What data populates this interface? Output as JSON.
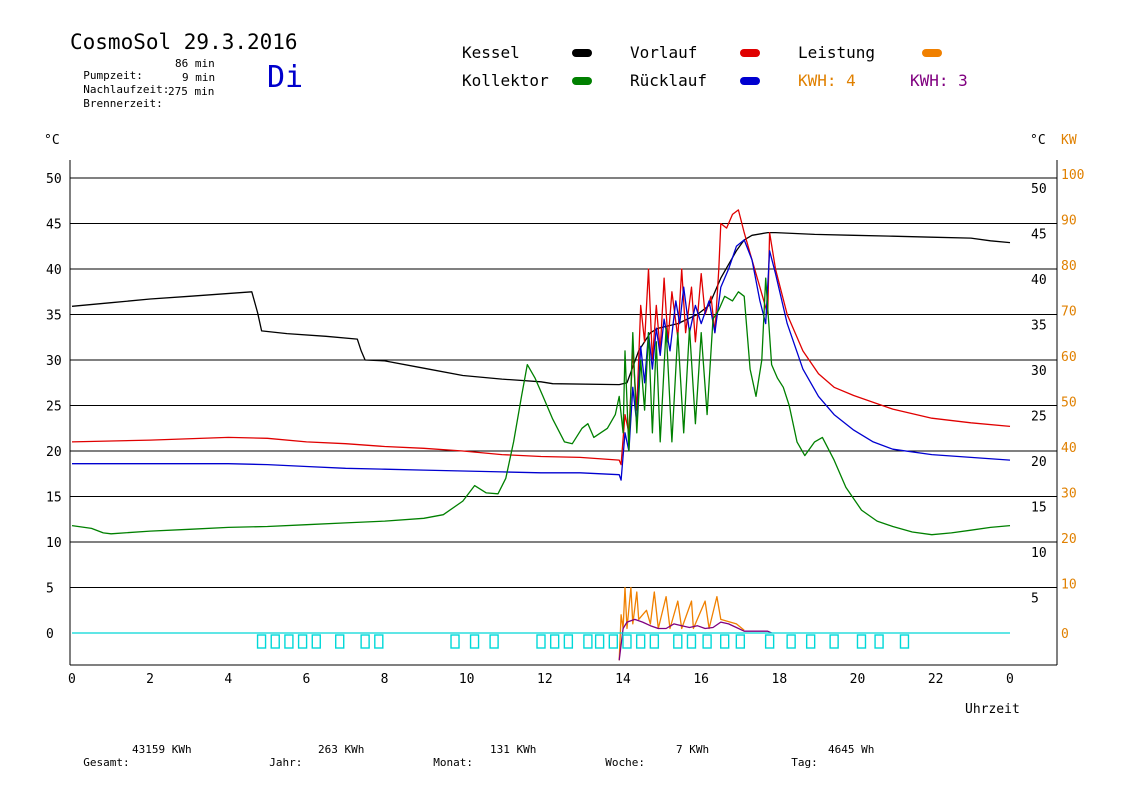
{
  "header": {
    "title": "CosmoSol 29.3.2016",
    "stats": [
      {
        "label": "Pumpzeit:",
        "value": "86 min"
      },
      {
        "label": "Nachlaufzeit:",
        "value": "9 min"
      },
      {
        "label": "Brennerzeit:",
        "value": "275 min"
      }
    ],
    "day": "Di"
  },
  "legend": {
    "items": [
      {
        "label": "Kessel",
        "color": "#000000"
      },
      {
        "label": "Vorlauf",
        "color": "#e00000"
      },
      {
        "label": "Leistung",
        "color": "#f08000"
      },
      {
        "label": "Kollektor",
        "color": "#008000"
      },
      {
        "label": "Rücklauf",
        "color": "#0000d0"
      }
    ],
    "kwh": [
      {
        "label": "KWH: 4",
        "color": "#e08000"
      },
      {
        "label": "KWH: 3",
        "color": "#800080"
      }
    ]
  },
  "axes": {
    "left_unit": "°C",
    "right_unit_c": "°C",
    "right_unit_kw": "KW",
    "x_label": "Uhrzeit"
  },
  "footer": [
    {
      "label": "Gesamt:",
      "value": "43159 KWh"
    },
    {
      "label": "Jahr:",
      "value": "263 KWh"
    },
    {
      "label": "Monat:",
      "value": "131 KWh"
    },
    {
      "label": "Woche:",
      "value": "7 KWh"
    },
    {
      "label": "Tag:",
      "value": "4645 Wh"
    }
  ],
  "chart_data": {
    "type": "line",
    "xlabel": "Uhrzeit",
    "ylabel": "°C",
    "x_ticks": [
      "0",
      "2",
      "4",
      "6",
      "8",
      "10",
      "12",
      "14",
      "16",
      "18",
      "20",
      "22",
      "0"
    ],
    "xlim": [
      0,
      24
    ],
    "y_left_ticks": [
      "0",
      "5",
      "10",
      "15",
      "20",
      "25",
      "30",
      "35",
      "40",
      "45",
      "50"
    ],
    "y_right_c_ticks": [
      "5",
      "10",
      "15",
      "20",
      "25",
      "30",
      "35",
      "40",
      "45",
      "50"
    ],
    "y_right_kw_ticks": [
      "0",
      "10",
      "20",
      "30",
      "40",
      "50",
      "60",
      "70",
      "80",
      "90",
      "100"
    ],
    "ylim": [
      -3.5,
      50
    ],
    "grid": "horizontal",
    "series": [
      {
        "name": "Kessel",
        "color": "#000000",
        "points": [
          [
            0,
            35.9
          ],
          [
            1,
            36.3
          ],
          [
            2,
            36.7
          ],
          [
            3,
            37.0
          ],
          [
            4.6,
            37.5
          ],
          [
            4.75,
            35.2
          ],
          [
            4.85,
            33.2
          ],
          [
            5.5,
            32.9
          ],
          [
            6.5,
            32.6
          ],
          [
            7.3,
            32.3
          ],
          [
            7.4,
            31.0
          ],
          [
            7.5,
            30.0
          ],
          [
            8,
            29.9
          ],
          [
            9,
            29.1
          ],
          [
            10,
            28.3
          ],
          [
            11,
            27.9
          ],
          [
            12,
            27.6
          ],
          [
            12.3,
            27.4
          ],
          [
            14,
            27.3
          ],
          [
            14.2,
            27.5
          ],
          [
            14.5,
            31.0
          ],
          [
            14.8,
            33.0
          ],
          [
            15,
            33.5
          ],
          [
            15.5,
            34.0
          ],
          [
            16,
            35.0
          ],
          [
            16.3,
            36.0
          ],
          [
            16.6,
            39.0
          ],
          [
            17,
            42.0
          ],
          [
            17.2,
            43.2
          ],
          [
            17.4,
            43.7
          ],
          [
            17.8,
            44.0
          ],
          [
            18,
            44.0
          ],
          [
            19,
            43.8
          ],
          [
            20,
            43.7
          ],
          [
            21,
            43.6
          ],
          [
            22,
            43.5
          ],
          [
            23,
            43.4
          ],
          [
            23.5,
            43.1
          ],
          [
            24,
            42.9
          ]
        ]
      },
      {
        "name": "Vorlauf",
        "color": "#e00000",
        "points": [
          [
            0,
            21.0
          ],
          [
            2,
            21.2
          ],
          [
            4,
            21.5
          ],
          [
            5,
            21.4
          ],
          [
            6,
            21.0
          ],
          [
            7,
            20.8
          ],
          [
            8,
            20.5
          ],
          [
            9,
            20.3
          ],
          [
            10,
            20.0
          ],
          [
            11,
            19.6
          ],
          [
            12,
            19.4
          ],
          [
            13,
            19.3
          ],
          [
            14,
            19.0
          ],
          [
            14.05,
            18.5
          ],
          [
            14.15,
            24.0
          ],
          [
            14.25,
            22.0
          ],
          [
            14.35,
            31.0
          ],
          [
            14.45,
            24.5
          ],
          [
            14.55,
            36.0
          ],
          [
            14.65,
            32.0
          ],
          [
            14.75,
            40.0
          ],
          [
            14.85,
            30.0
          ],
          [
            14.95,
            36.0
          ],
          [
            15.05,
            31.0
          ],
          [
            15.15,
            39.0
          ],
          [
            15.25,
            32.0
          ],
          [
            15.35,
            37.5
          ],
          [
            15.5,
            32.5
          ],
          [
            15.6,
            40.0
          ],
          [
            15.7,
            33.0
          ],
          [
            15.85,
            38.0
          ],
          [
            15.95,
            32.0
          ],
          [
            16.1,
            39.5
          ],
          [
            16.2,
            35.0
          ],
          [
            16.35,
            37.0
          ],
          [
            16.45,
            33.0
          ],
          [
            16.55,
            40.0
          ],
          [
            16.6,
            45.0
          ],
          [
            16.75,
            44.5
          ],
          [
            16.9,
            46.0
          ],
          [
            17.05,
            46.5
          ],
          [
            17.2,
            44.0
          ],
          [
            17.4,
            41.0
          ],
          [
            17.6,
            38.0
          ],
          [
            17.8,
            35.0
          ],
          [
            17.85,
            44.0
          ],
          [
            18,
            40.0
          ],
          [
            18.3,
            35.0
          ],
          [
            18.7,
            31.0
          ],
          [
            19.1,
            28.5
          ],
          [
            19.5,
            27.0
          ],
          [
            20,
            26.1
          ],
          [
            21,
            24.6
          ],
          [
            22,
            23.6
          ],
          [
            23,
            23.1
          ],
          [
            24,
            22.7
          ]
        ]
      },
      {
        "name": "Rücklauf",
        "color": "#0000d0",
        "points": [
          [
            0,
            18.6
          ],
          [
            2,
            18.6
          ],
          [
            4,
            18.6
          ],
          [
            5,
            18.5
          ],
          [
            6,
            18.3
          ],
          [
            7,
            18.1
          ],
          [
            8,
            18.0
          ],
          [
            9,
            17.9
          ],
          [
            10,
            17.8
          ],
          [
            11,
            17.7
          ],
          [
            12,
            17.6
          ],
          [
            13,
            17.6
          ],
          [
            14,
            17.4
          ],
          [
            14.05,
            16.8
          ],
          [
            14.15,
            22.0
          ],
          [
            14.25,
            20.0
          ],
          [
            14.35,
            27.0
          ],
          [
            14.45,
            23.0
          ],
          [
            14.55,
            31.5
          ],
          [
            14.65,
            27.5
          ],
          [
            14.75,
            33.0
          ],
          [
            14.85,
            29.0
          ],
          [
            14.95,
            33.5
          ],
          [
            15.05,
            30.5
          ],
          [
            15.15,
            34.5
          ],
          [
            15.3,
            31.0
          ],
          [
            15.45,
            36.5
          ],
          [
            15.55,
            34.0
          ],
          [
            15.65,
            38.0
          ],
          [
            15.8,
            33.0
          ],
          [
            15.95,
            36.0
          ],
          [
            16.1,
            34.0
          ],
          [
            16.3,
            36.5
          ],
          [
            16.45,
            33.0
          ],
          [
            16.6,
            38.0
          ],
          [
            16.8,
            40.0
          ],
          [
            17,
            42.5
          ],
          [
            17.2,
            43.2
          ],
          [
            17.4,
            41.0
          ],
          [
            17.6,
            36.5
          ],
          [
            17.75,
            34.0
          ],
          [
            17.85,
            42.0
          ],
          [
            18,
            39.5
          ],
          [
            18.3,
            34.0
          ],
          [
            18.7,
            29.0
          ],
          [
            19.1,
            26.0
          ],
          [
            19.5,
            24.0
          ],
          [
            20,
            22.3
          ],
          [
            20.5,
            21.0
          ],
          [
            21,
            20.2
          ],
          [
            22,
            19.6
          ],
          [
            23,
            19.3
          ],
          [
            24,
            19.0
          ]
        ]
      },
      {
        "name": "Kollektor",
        "color": "#008000",
        "points": [
          [
            0,
            11.8
          ],
          [
            0.5,
            11.5
          ],
          [
            0.8,
            11.0
          ],
          [
            1,
            10.9
          ],
          [
            2,
            11.2
          ],
          [
            3,
            11.4
          ],
          [
            4,
            11.6
          ],
          [
            5,
            11.7
          ],
          [
            6,
            11.9
          ],
          [
            7,
            12.1
          ],
          [
            8,
            12.3
          ],
          [
            9,
            12.6
          ],
          [
            9.5,
            13.0
          ],
          [
            10,
            14.5
          ],
          [
            10.3,
            16.2
          ],
          [
            10.6,
            15.4
          ],
          [
            10.9,
            15.3
          ],
          [
            11.1,
            17.0
          ],
          [
            11.3,
            21.0
          ],
          [
            11.5,
            26.0
          ],
          [
            11.65,
            29.5
          ],
          [
            11.85,
            28.0
          ],
          [
            12.05,
            26.0
          ],
          [
            12.3,
            23.5
          ],
          [
            12.6,
            21.0
          ],
          [
            12.8,
            20.8
          ],
          [
            13.05,
            22.5
          ],
          [
            13.2,
            23.0
          ],
          [
            13.35,
            21.5
          ],
          [
            13.7,
            22.5
          ],
          [
            13.9,
            24.0
          ],
          [
            14.0,
            26.0
          ],
          [
            14.1,
            22.0
          ],
          [
            14.15,
            31.0
          ],
          [
            14.25,
            20.0
          ],
          [
            14.35,
            33.0
          ],
          [
            14.45,
            22.0
          ],
          [
            14.55,
            30.0
          ],
          [
            14.65,
            24.5
          ],
          [
            14.75,
            33.0
          ],
          [
            14.85,
            22.0
          ],
          [
            14.95,
            32.0
          ],
          [
            15.05,
            21.0
          ],
          [
            15.2,
            33.5
          ],
          [
            15.35,
            21.0
          ],
          [
            15.5,
            33.0
          ],
          [
            15.65,
            22.0
          ],
          [
            15.8,
            33.5
          ],
          [
            15.95,
            23.0
          ],
          [
            16.1,
            33.0
          ],
          [
            16.25,
            24.0
          ],
          [
            16.4,
            34.5
          ],
          [
            16.55,
            35.5
          ],
          [
            16.7,
            37.0
          ],
          [
            16.9,
            36.5
          ],
          [
            17.05,
            37.5
          ],
          [
            17.2,
            37.0
          ],
          [
            17.35,
            29.0
          ],
          [
            17.5,
            26.0
          ],
          [
            17.65,
            30.0
          ],
          [
            17.75,
            39.0
          ],
          [
            17.9,
            29.5
          ],
          [
            18.05,
            28.0
          ],
          [
            18.2,
            27.0
          ],
          [
            18.35,
            25.0
          ],
          [
            18.55,
            21.0
          ],
          [
            18.75,
            19.5
          ],
          [
            19,
            21.0
          ],
          [
            19.2,
            21.5
          ],
          [
            19.5,
            19.0
          ],
          [
            19.8,
            16.0
          ],
          [
            20.2,
            13.5
          ],
          [
            20.6,
            12.3
          ],
          [
            21,
            11.7
          ],
          [
            21.5,
            11.1
          ],
          [
            22,
            10.8
          ],
          [
            22.5,
            11.0
          ],
          [
            23,
            11.3
          ],
          [
            23.5,
            11.6
          ],
          [
            24,
            11.8
          ]
        ]
      },
      {
        "name": "Leistung",
        "color": "#f08000",
        "points": [
          [
            14,
            -3.0
          ],
          [
            14.05,
            2.0
          ],
          [
            14.1,
            0.5
          ],
          [
            14.15,
            5.0
          ],
          [
            14.2,
            0.5
          ],
          [
            14.3,
            5.0
          ],
          [
            14.35,
            1.0
          ],
          [
            14.45,
            4.5
          ],
          [
            14.5,
            1.5
          ],
          [
            14.6,
            2.0
          ],
          [
            14.7,
            2.5
          ],
          [
            14.8,
            1.0
          ],
          [
            14.9,
            4.5
          ],
          [
            15,
            0.5
          ],
          [
            15.2,
            4.0
          ],
          [
            15.3,
            0.5
          ],
          [
            15.5,
            3.5
          ],
          [
            15.6,
            0.5
          ],
          [
            15.85,
            3.5
          ],
          [
            15.9,
            0.5
          ],
          [
            16.2,
            3.5
          ],
          [
            16.3,
            0.5
          ],
          [
            16.5,
            4.0
          ],
          [
            16.6,
            1.5
          ],
          [
            17,
            1.0
          ],
          [
            17.2,
            0.3
          ]
        ]
      },
      {
        "name": "",
        "color": "#800080",
        "points": [
          [
            14,
            -3.0
          ],
          [
            14.1,
            0.5
          ],
          [
            14.2,
            1.2
          ],
          [
            14.4,
            1.5
          ],
          [
            14.6,
            1.2
          ],
          [
            14.8,
            0.8
          ],
          [
            15,
            0.5
          ],
          [
            15.2,
            0.5
          ],
          [
            15.4,
            1.0
          ],
          [
            15.6,
            0.8
          ],
          [
            15.8,
            0.6
          ],
          [
            16.0,
            0.8
          ],
          [
            16.2,
            0.5
          ],
          [
            16.4,
            0.6
          ],
          [
            16.6,
            1.2
          ],
          [
            16.8,
            1.0
          ],
          [
            17.0,
            0.6
          ],
          [
            17.2,
            0.2
          ],
          [
            17.8,
            0.2
          ],
          [
            17.9,
            0.0
          ]
        ]
      },
      {
        "name": "",
        "color": "#00d8d8",
        "points": [
          [
            0,
            0
          ],
          [
            24,
            0
          ]
        ]
      }
    ],
    "pump_markers_h": [
      4.85,
      5.2,
      5.55,
      5.9,
      6.25,
      6.85,
      7.5,
      7.85,
      9.8,
      10.3,
      10.8,
      12.0,
      12.35,
      12.7,
      13.2,
      13.5,
      13.85,
      14.2,
      14.55,
      14.9,
      15.5,
      15.85,
      16.25,
      16.7,
      17.1,
      17.85,
      18.4,
      18.9,
      19.5,
      20.2,
      20.65,
      21.3
    ]
  }
}
